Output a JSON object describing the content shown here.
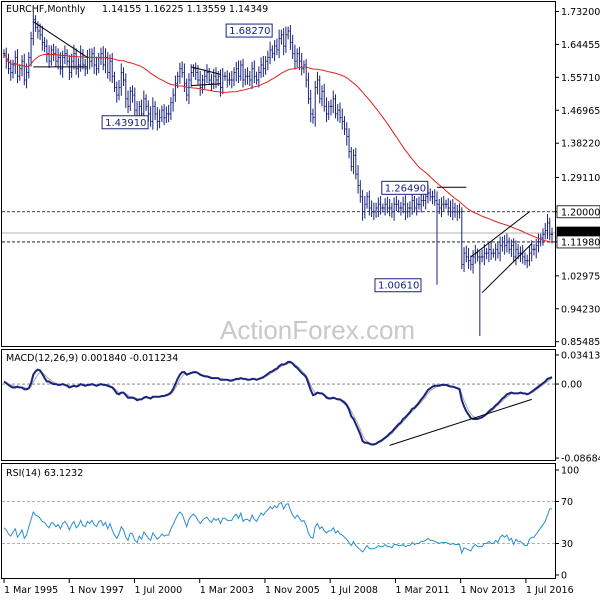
{
  "chart_data": [
    {
      "type": "candlestick",
      "title": "EURCHF,Monthly",
      "ohlc_readout": [
        "1.14155",
        "1.16225",
        "1.13559",
        "1.14349"
      ],
      "y_ticks": [
        "1.73200",
        "1.64455",
        "1.55710",
        "1.46965",
        "1.38220",
        "1.29110",
        "1.20000",
        "1.11980",
        "1.02975",
        "0.94230",
        "0.85485"
      ],
      "x_ticks": [
        "1 Mar 1995",
        "1 Nov 1997",
        "1 Jul 2000",
        "1 Mar 2003",
        "1 Nov 2005",
        "1 Jul 2008",
        "1 Mar 2011",
        "1 Nov 2013",
        "1 Jul 2016"
      ],
      "price_tags": [
        {
          "label": "1.20000",
          "value": 1.2,
          "color": "#000000",
          "bg": "#ffffff"
        },
        {
          "label": "1.14349",
          "value": 1.1435,
          "color": "#ffffff",
          "bg": "#000000"
        },
        {
          "label": "1.11980",
          "value": 1.1198,
          "color": "#000000",
          "bg": "#ffffff"
        }
      ],
      "annotations": [
        {
          "label": "1.68270",
          "t": 126,
          "value": 1.6827
        },
        {
          "label": "1.43910",
          "t": 71,
          "value": 1.4391
        },
        {
          "label": "1.26490",
          "t": 195,
          "value": 1.2649
        },
        {
          "label": "1.00610",
          "t": 192,
          "value": 1.0061
        }
      ],
      "moving_average_color": "#e02020",
      "candle_color": "#1a237e",
      "ylim": [
        0.854,
        1.736
      ],
      "series": {
        "close": [
          1.62,
          1.6,
          1.58,
          1.57,
          1.59,
          1.61,
          1.56,
          1.58,
          1.6,
          1.55,
          1.57,
          1.61,
          1.66,
          1.71,
          1.69,
          1.68,
          1.67,
          1.65,
          1.64,
          1.62,
          1.6,
          1.63,
          1.62,
          1.6,
          1.61,
          1.58,
          1.61,
          1.62,
          1.6,
          1.57,
          1.6,
          1.62,
          1.58,
          1.59,
          1.62,
          1.59,
          1.58,
          1.61,
          1.6,
          1.62,
          1.59,
          1.58,
          1.61,
          1.62,
          1.59,
          1.61,
          1.57,
          1.6,
          1.56,
          1.53,
          1.51,
          1.53,
          1.57,
          1.55,
          1.5,
          1.48,
          1.52,
          1.51,
          1.47,
          1.45,
          1.48,
          1.46,
          1.5,
          1.48,
          1.46,
          1.44,
          1.48,
          1.46,
          1.44,
          1.45,
          1.47,
          1.45,
          1.46,
          1.46,
          1.49,
          1.51,
          1.54,
          1.56,
          1.58,
          1.57,
          1.54,
          1.51,
          1.55,
          1.57,
          1.58,
          1.57,
          1.55,
          1.53,
          1.55,
          1.56,
          1.57,
          1.55,
          1.54,
          1.56,
          1.55,
          1.56,
          1.53,
          1.56,
          1.56,
          1.55,
          1.55,
          1.55,
          1.57,
          1.58,
          1.56,
          1.59,
          1.55,
          1.56,
          1.56,
          1.55,
          1.58,
          1.56,
          1.55,
          1.57,
          1.59,
          1.58,
          1.6,
          1.61,
          1.63,
          1.62,
          1.64,
          1.63,
          1.66,
          1.67,
          1.64,
          1.67,
          1.68,
          1.65,
          1.62,
          1.6,
          1.62,
          1.6,
          1.58,
          1.59,
          1.55,
          1.5,
          1.46,
          1.45,
          1.53,
          1.55,
          1.5,
          1.52,
          1.48,
          1.46,
          1.48,
          1.48,
          1.5,
          1.46,
          1.47,
          1.45,
          1.44,
          1.42,
          1.4,
          1.36,
          1.32,
          1.35,
          1.3,
          1.27,
          1.24,
          1.2,
          1.22,
          1.24,
          1.21,
          1.2,
          1.2,
          1.21,
          1.22,
          1.21,
          1.21,
          1.22,
          1.21,
          1.21,
          1.2,
          1.22,
          1.22,
          1.21,
          1.21,
          1.22,
          1.2,
          1.21,
          1.21,
          1.23,
          1.21,
          1.22,
          1.22,
          1.23,
          1.23,
          1.24,
          1.25,
          1.24,
          1.24,
          1.23,
          1.22,
          1.21,
          1.22,
          1.22,
          1.22,
          1.21,
          1.2,
          1.21,
          1.2,
          1.2,
          1.2,
          1.06,
          1.09,
          1.08,
          1.07,
          1.06,
          1.08,
          1.09,
          1.08,
          1.08,
          1.08,
          1.09,
          1.09,
          1.1,
          1.09,
          1.09,
          1.1,
          1.09,
          1.11,
          1.12,
          1.11,
          1.12,
          1.1,
          1.11,
          1.08,
          1.1,
          1.09,
          1.09,
          1.08,
          1.07,
          1.07,
          1.09,
          1.1,
          1.1,
          1.11,
          1.12,
          1.13,
          1.14,
          1.15,
          1.17,
          1.14,
          1.14
        ]
      },
      "ma_window": 50
    },
    {
      "type": "line",
      "title": "MACD(12,26,9) 0.001840 -0.011234",
      "y_ticks": [
        "0.034137",
        "0.00",
        "-0.086849"
      ],
      "ylim": [
        -0.0868,
        0.0341
      ],
      "series": [
        {
          "name": "MACD",
          "color": "#1a237e",
          "values": [
            0.003,
            0.001,
            -0.001,
            -0.003,
            -0.004,
            -0.004,
            -0.003,
            -0.004,
            -0.004,
            -0.006,
            -0.006,
            -0.005,
            0.001,
            0.011,
            0.015,
            0.017,
            0.016,
            0.012,
            0.007,
            0.003,
            0.003,
            0.001,
            0.0,
            0.0,
            -0.001,
            -0.001,
            -0.0,
            -0.001,
            -0.002,
            -0.004,
            -0.003,
            -0.002,
            -0.003,
            -0.002,
            0.0,
            -0.001,
            -0.002,
            -0.001,
            -0.001,
            0.0,
            -0.001,
            -0.002,
            -0.001,
            -0.0,
            -0.001,
            -0.001,
            -0.002,
            -0.003,
            -0.004,
            -0.007,
            -0.011,
            -0.012,
            -0.01,
            -0.01,
            -0.013,
            -0.016,
            -0.016,
            -0.016,
            -0.017,
            -0.019,
            -0.018,
            -0.018,
            -0.016,
            -0.015,
            -0.016,
            -0.017,
            -0.015,
            -0.015,
            -0.015,
            -0.015,
            -0.014,
            -0.014,
            -0.013,
            -0.012,
            -0.01,
            -0.006,
            0.0,
            0.006,
            0.011,
            0.014,
            0.014,
            0.011,
            0.012,
            0.013,
            0.014,
            0.014,
            0.013,
            0.011,
            0.01,
            0.009,
            0.009,
            0.008,
            0.007,
            0.007,
            0.007,
            0.007,
            0.005,
            0.005,
            0.005,
            0.005,
            0.004,
            0.004,
            0.005,
            0.006,
            0.006,
            0.007,
            0.006,
            0.006,
            0.005,
            0.005,
            0.006,
            0.006,
            0.005,
            0.006,
            0.007,
            0.008,
            0.01,
            0.012,
            0.014,
            0.015,
            0.017,
            0.018,
            0.021,
            0.023,
            0.023,
            0.024,
            0.026,
            0.026,
            0.024,
            0.021,
            0.019,
            0.016,
            0.013,
            0.011,
            0.008,
            0.001,
            -0.007,
            -0.013,
            -0.012,
            -0.01,
            -0.011,
            -0.011,
            -0.013,
            -0.016,
            -0.017,
            -0.017,
            -0.016,
            -0.017,
            -0.018,
            -0.018,
            -0.02,
            -0.022,
            -0.025,
            -0.03,
            -0.038,
            -0.041,
            -0.047,
            -0.053,
            -0.059,
            -0.067,
            -0.069,
            -0.069,
            -0.07,
            -0.071,
            -0.071,
            -0.07,
            -0.068,
            -0.067,
            -0.065,
            -0.063,
            -0.061,
            -0.058,
            -0.056,
            -0.053,
            -0.05,
            -0.047,
            -0.045,
            -0.041,
            -0.039,
            -0.036,
            -0.033,
            -0.029,
            -0.028,
            -0.025,
            -0.022,
            -0.018,
            -0.015,
            -0.011,
            -0.007,
            -0.005,
            -0.003,
            -0.002,
            -0.002,
            -0.002,
            -0.001,
            -0.001,
            -0.001,
            -0.002,
            -0.003,
            -0.003,
            -0.004,
            -0.005,
            -0.006,
            -0.019,
            -0.026,
            -0.032,
            -0.036,
            -0.04,
            -0.041,
            -0.041,
            -0.041,
            -0.04,
            -0.039,
            -0.037,
            -0.035,
            -0.032,
            -0.03,
            -0.028,
            -0.025,
            -0.023,
            -0.02,
            -0.017,
            -0.015,
            -0.012,
            -0.011,
            -0.01,
            -0.011,
            -0.011,
            -0.011,
            -0.01,
            -0.011,
            -0.011,
            -0.012,
            -0.011,
            -0.009,
            -0.007,
            -0.005,
            -0.003,
            -0.001,
            0.001,
            0.003,
            0.006,
            0.007,
            0.008
          ]
        },
        {
          "name": "Signal",
          "color": "#a8a8a8",
          "values": [
            0.003,
            0.002,
            0.0,
            -0.001,
            -0.002,
            -0.003,
            -0.003,
            -0.004,
            -0.004,
            -0.004,
            -0.005,
            -0.005,
            -0.003,
            0.002,
            0.007,
            0.011,
            0.014,
            0.013,
            0.011,
            0.008,
            0.006,
            0.004,
            0.002,
            0.001,
            0.0,
            -0.0,
            -0.0,
            -0.001,
            -0.001,
            -0.002,
            -0.003,
            -0.002,
            -0.002,
            -0.002,
            -0.001,
            -0.001,
            -0.002,
            -0.002,
            -0.001,
            -0.001,
            -0.001,
            -0.001,
            -0.001,
            -0.001,
            -0.001,
            -0.001,
            -0.001,
            -0.002,
            -0.003,
            -0.005,
            -0.008,
            -0.01,
            -0.01,
            -0.01,
            -0.011,
            -0.013,
            -0.015,
            -0.015,
            -0.016,
            -0.017,
            -0.018,
            -0.018,
            -0.017,
            -0.016,
            -0.016,
            -0.016,
            -0.016,
            -0.015,
            -0.015,
            -0.015,
            -0.015,
            -0.014,
            -0.014,
            -0.013,
            -0.012,
            -0.009,
            -0.005,
            0.0,
            0.005,
            0.009,
            0.012,
            0.012,
            0.012,
            0.012,
            0.013,
            0.013,
            0.013,
            0.012,
            0.011,
            0.01,
            0.009,
            0.009,
            0.008,
            0.007,
            0.007,
            0.007,
            0.006,
            0.006,
            0.005,
            0.005,
            0.005,
            0.005,
            0.005,
            0.005,
            0.005,
            0.006,
            0.006,
            0.006,
            0.006,
            0.005,
            0.006,
            0.006,
            0.005,
            0.006,
            0.006,
            0.007,
            0.009,
            0.01,
            0.012,
            0.014,
            0.015,
            0.017,
            0.019,
            0.021,
            0.022,
            0.023,
            0.024,
            0.025,
            0.025,
            0.023,
            0.021,
            0.019,
            0.016,
            0.013,
            0.01,
            0.005,
            -0.001,
            -0.007,
            -0.01,
            -0.01,
            -0.01,
            -0.011,
            -0.012,
            -0.014,
            -0.016,
            -0.016,
            -0.016,
            -0.017,
            -0.017,
            -0.018,
            -0.019,
            -0.02,
            -0.023,
            -0.027,
            -0.032,
            -0.037,
            -0.042,
            -0.047,
            -0.053,
            -0.06,
            -0.065,
            -0.067,
            -0.069,
            -0.07,
            -0.07,
            -0.07,
            -0.069,
            -0.068,
            -0.066,
            -0.064,
            -0.062,
            -0.06,
            -0.058,
            -0.055,
            -0.052,
            -0.049,
            -0.047,
            -0.044,
            -0.041,
            -0.038,
            -0.035,
            -0.032,
            -0.03,
            -0.027,
            -0.024,
            -0.021,
            -0.018,
            -0.015,
            -0.011,
            -0.008,
            -0.006,
            -0.004,
            -0.003,
            -0.002,
            -0.002,
            -0.001,
            -0.001,
            -0.002,
            -0.002,
            -0.003,
            -0.003,
            -0.004,
            -0.005,
            -0.012,
            -0.019,
            -0.025,
            -0.031,
            -0.035,
            -0.038,
            -0.039,
            -0.04,
            -0.04,
            -0.039,
            -0.038,
            -0.036,
            -0.034,
            -0.032,
            -0.03,
            -0.027,
            -0.025,
            -0.022,
            -0.02,
            -0.017,
            -0.015,
            -0.013,
            -0.011,
            -0.011,
            -0.011,
            -0.011,
            -0.011,
            -0.011,
            -0.011,
            -0.011,
            -0.011,
            -0.01,
            -0.009,
            -0.007,
            -0.005,
            -0.003,
            -0.001,
            0.001,
            0.003,
            0.005,
            0.007
          ]
        }
      ]
    },
    {
      "type": "line",
      "title": "RSI(14) 63.1232",
      "y_ticks": [
        "100",
        "70",
        "30",
        "0"
      ],
      "ylim": [
        0,
        100
      ],
      "series": [
        {
          "name": "RSI",
          "color": "#2a8fd0",
          "values": [
            45,
            43,
            39,
            37,
            41,
            44,
            36,
            39,
            43,
            35,
            38,
            46,
            53,
            60,
            57,
            56,
            54,
            51,
            50,
            47,
            45,
            50,
            49,
            46,
            48,
            44,
            49,
            51,
            48,
            43,
            48,
            51,
            45,
            47,
            52,
            47,
            46,
            51,
            49,
            52,
            48,
            46,
            51,
            52,
            47,
            50,
            44,
            49,
            43,
            38,
            35,
            39,
            46,
            43,
            36,
            33,
            40,
            39,
            33,
            31,
            37,
            34,
            41,
            38,
            35,
            33,
            40,
            37,
            34,
            36,
            39,
            37,
            38,
            38,
            44,
            48,
            53,
            57,
            60,
            58,
            52,
            46,
            53,
            56,
            58,
            56,
            52,
            49,
            52,
            54,
            55,
            52,
            50,
            54,
            52,
            54,
            49,
            54,
            54,
            52,
            52,
            52,
            56,
            58,
            54,
            59,
            51,
            53,
            53,
            51,
            57,
            53,
            51,
            55,
            59,
            57,
            60,
            62,
            65,
            63,
            66,
            64,
            68,
            69,
            63,
            67,
            68,
            62,
            57,
            54,
            57,
            54,
            51,
            52,
            47,
            40,
            36,
            35,
            46,
            49,
            44,
            46,
            42,
            40,
            42,
            42,
            45,
            40,
            42,
            39,
            38,
            36,
            34,
            31,
            28,
            32,
            28,
            26,
            24,
            22,
            25,
            28,
            25,
            25,
            25,
            26,
            28,
            27,
            27,
            29,
            27,
            27,
            26,
            29,
            29,
            28,
            28,
            29,
            27,
            28,
            28,
            31,
            29,
            30,
            30,
            32,
            32,
            33,
            35,
            33,
            33,
            32,
            31,
            30,
            31,
            31,
            31,
            30,
            29,
            30,
            29,
            29,
            29,
            21,
            26,
            25,
            24,
            23,
            27,
            29,
            27,
            27,
            27,
            30,
            30,
            32,
            30,
            30,
            33,
            31,
            36,
            38,
            36,
            38,
            33,
            35,
            29,
            34,
            32,
            32,
            30,
            28,
            28,
            34,
            36,
            36,
            39,
            42,
            45,
            48,
            51,
            57,
            63,
            63
          ]
        }
      ]
    }
  ],
  "watermark": "ActionForex.com"
}
